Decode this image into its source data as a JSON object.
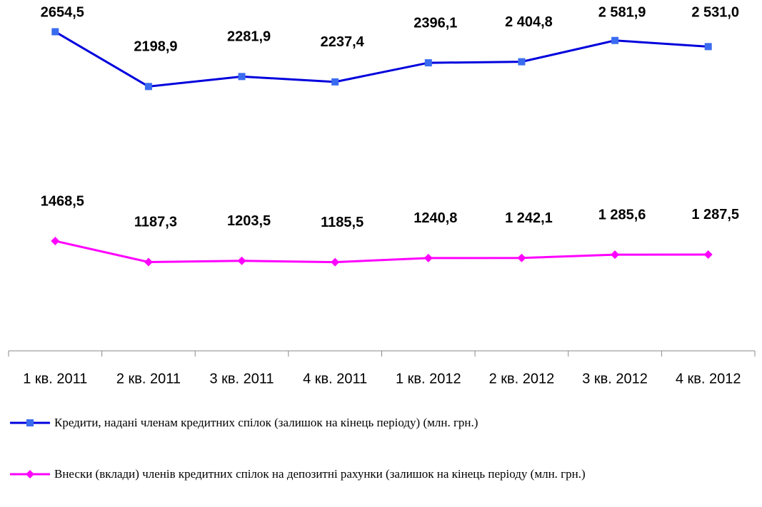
{
  "chart_data": {
    "type": "line",
    "categories": [
      "1 кв. 2011",
      "2 кв. 2011",
      "3 кв. 2011",
      "4 кв. 2011",
      "1 кв. 2012",
      "2 кв. 2012",
      "3 кв. 2012",
      "4 кв. 2012"
    ],
    "ylim": [
      0,
      2800
    ],
    "y2lim": [
      0,
      4500
    ],
    "series": [
      {
        "name": "Кредити, надані членам кредитних спілок (залишок на кінець періоду) (млн. грн.)",
        "color": "#0000dd",
        "marker_color": "#3a6cf0",
        "marker": "square",
        "values": [
          2654.5,
          2198.9,
          2281.9,
          2237.4,
          2396.1,
          2404.8,
          2581.9,
          2531.0
        ],
        "value_labels": [
          "2654,5",
          "2198,9",
          "2281,9",
          "2237,4",
          "2396,1",
          "2 404,8",
          "2 581,9",
          "2 531,0"
        ]
      },
      {
        "name": "Внески (вклади) членів кредитних спілок на депозитні рахунки (залишок на кінець періоду (млн. грн.)",
        "color": "#ff00ff",
        "marker_color": "#ff00ff",
        "marker": "diamond",
        "axis": "y2",
        "values": [
          1468.5,
          1187.3,
          1203.5,
          1185.5,
          1240.8,
          1242.1,
          1285.6,
          1287.5
        ],
        "value_labels": [
          "1468,5",
          "1187,3",
          "1203,5",
          "1185,5",
          "1240,8",
          "1 242,1",
          "1 285,6",
          "1 287,5"
        ]
      }
    ]
  }
}
